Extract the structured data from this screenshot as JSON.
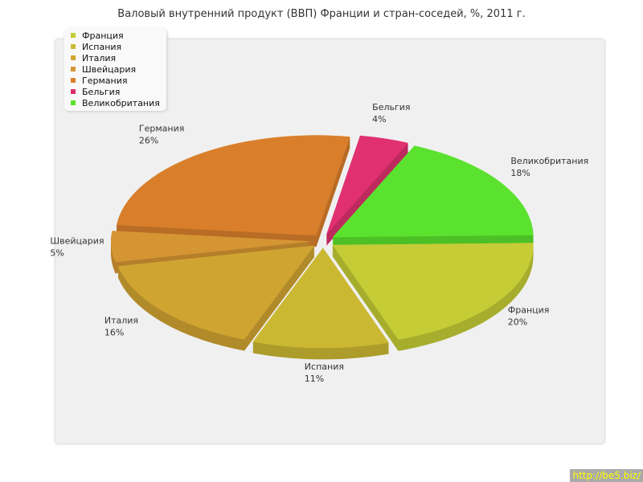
{
  "chart_data": {
    "type": "pie",
    "title": "Валовый внутренний продукт (ВВП) Франции и стран-соседей, %, 2011 г.",
    "categories": [
      "Франция",
      "Испания",
      "Италия",
      "Швейцария",
      "Германия",
      "Бельгия",
      "Великобритания"
    ],
    "values": [
      20,
      11,
      16,
      5,
      26,
      4,
      18
    ],
    "value_labels": [
      "20%",
      "11%",
      "16%",
      "5%",
      "26%",
      "4%",
      "18%"
    ],
    "colors": [
      "#c5cc35",
      "#cbb832",
      "#d0a431",
      "#d59533",
      "#d97f2b",
      "#e0306f",
      "#5be22e"
    ],
    "style": "3d-exploded",
    "legend_position": "top-left"
  },
  "credit": "http://be5.biz/"
}
